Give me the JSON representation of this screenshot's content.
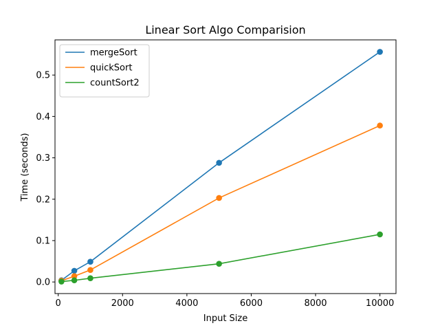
{
  "chart_data": {
    "type": "line",
    "title": "Linear Sort Algo Comparision",
    "xlabel": "Input Size",
    "ylabel": "Time (seconds)",
    "x": [
      100,
      500,
      1000,
      5000,
      10000
    ],
    "series": [
      {
        "name": "mergeSort",
        "color": "#1f77b4",
        "values": [
          0.004,
          0.027,
          0.049,
          0.288,
          0.556
        ]
      },
      {
        "name": "quickSort",
        "color": "#ff7f0e",
        "values": [
          0.003,
          0.014,
          0.029,
          0.203,
          0.378
        ]
      },
      {
        "name": "countSort2",
        "color": "#2ca02c",
        "values": [
          0.001,
          0.004,
          0.009,
          0.044,
          0.115
        ]
      }
    ],
    "xlim": [
      -100,
      10500
    ],
    "ylim": [
      -0.028,
      0.585
    ],
    "xticks": [
      0,
      2000,
      4000,
      6000,
      8000,
      10000
    ],
    "yticks": [
      0.0,
      0.1,
      0.2,
      0.3,
      0.4,
      0.5
    ],
    "xtick_labels": [
      "0",
      "2000",
      "4000",
      "6000",
      "8000",
      "10000"
    ],
    "ytick_labels": [
      "0.0",
      "0.1",
      "0.2",
      "0.3",
      "0.4",
      "0.5"
    ],
    "grid": false,
    "legend_position": "upper-left",
    "markers": true
  }
}
